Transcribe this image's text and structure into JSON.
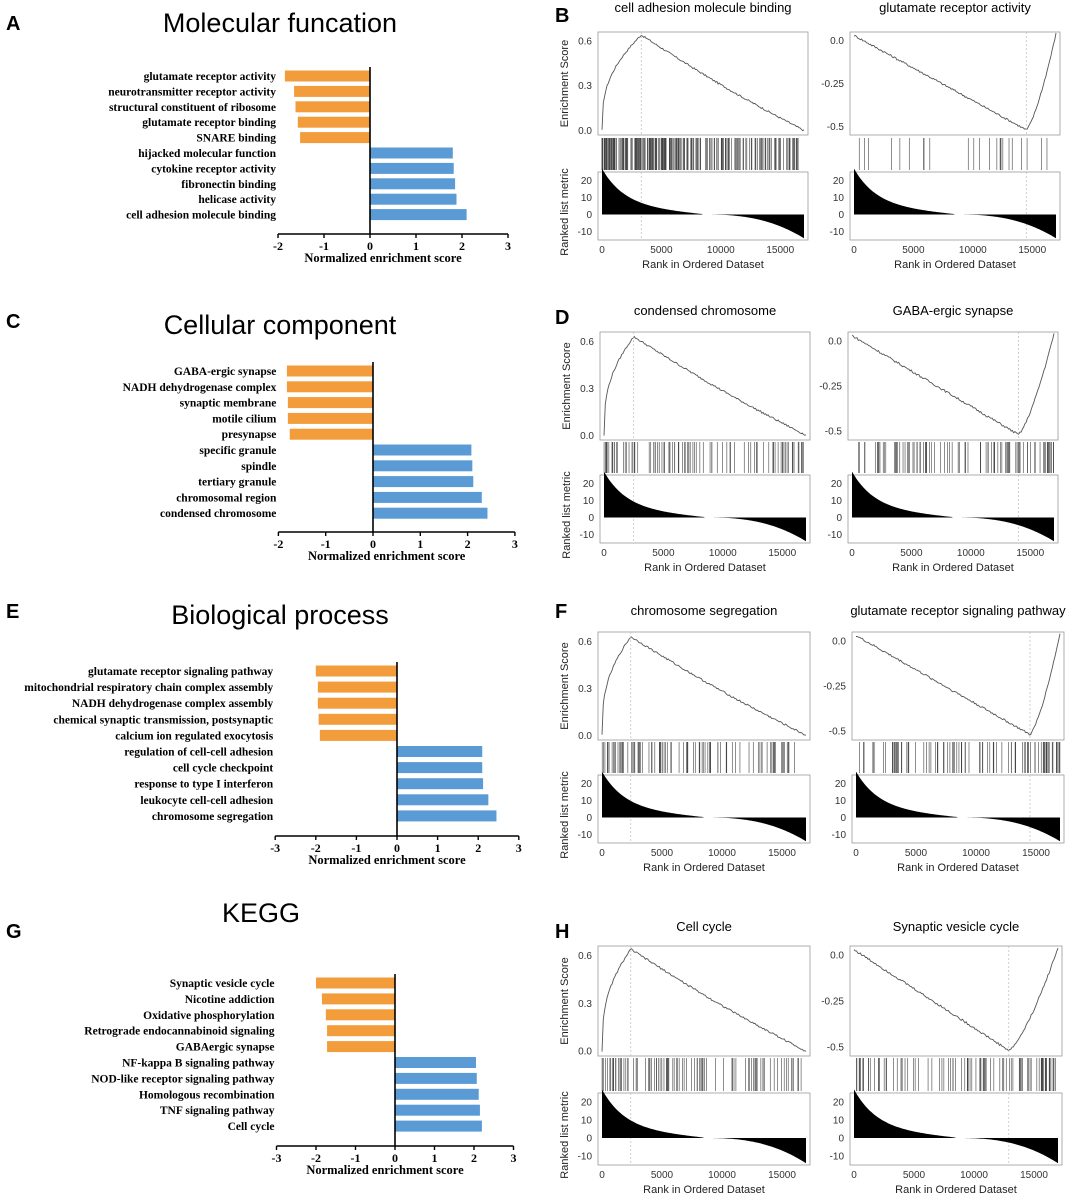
{
  "colors": {
    "positive": "#5b9bd5",
    "negative": "#f39c3c",
    "axis": "#000000",
    "curve": "#555555",
    "hit": "#444444"
  },
  "panels": [
    {
      "letter": "A",
      "title": "Molecular funcation"
    },
    {
      "letter": "B"
    },
    {
      "letter": "C",
      "title": "Cellular component"
    },
    {
      "letter": "D"
    },
    {
      "letter": "E",
      "title": "Biological process"
    },
    {
      "letter": "F"
    },
    {
      "letter": "G",
      "title": "KEGG"
    },
    {
      "letter": "H"
    }
  ],
  "chart_data": [
    {
      "type": "bar",
      "panel": "A",
      "orientation": "horizontal",
      "title": "Molecular funcation",
      "xlabel": "Normalized enrichment score",
      "xlim": [
        -2,
        3
      ],
      "xticks": [
        -2,
        -1,
        0,
        1,
        2,
        3
      ],
      "categories": [
        "glutamate receptor activity",
        "neurotransmitter receptor activity",
        "structural constituent of ribosome",
        "glutamate receptor binding",
        "SNARE binding",
        "hijacked molecular function",
        "cytokine receptor activity",
        "fibronectin binding",
        "helicase activity",
        "cell adhesion molecule binding"
      ],
      "values": [
        -1.85,
        -1.65,
        -1.62,
        -1.57,
        -1.52,
        1.8,
        1.82,
        1.85,
        1.88,
        2.1
      ]
    },
    {
      "type": "bar",
      "panel": "C",
      "orientation": "horizontal",
      "title": "Cellular component",
      "xlabel": "Normalized enrichment score",
      "xlim": [
        -2,
        3
      ],
      "xticks": [
        -2,
        -1,
        0,
        1,
        2,
        3
      ],
      "categories": [
        "GABA-ergic synapse",
        "NADH dehydrogenase complex",
        "synaptic membrane",
        "motile cilium",
        "presynapse",
        "specific granule",
        "spindle",
        "tertiary granule",
        "chromosomal region",
        "condensed chromosome"
      ],
      "values": [
        -1.82,
        -1.82,
        -1.8,
        -1.8,
        -1.76,
        2.08,
        2.1,
        2.12,
        2.3,
        2.42
      ]
    },
    {
      "type": "bar",
      "panel": "E",
      "orientation": "horizontal",
      "title": "Biological process",
      "xlabel": "Normalized enrichment score",
      "xlim": [
        -3,
        3
      ],
      "xticks": [
        -3,
        -2,
        -1,
        0,
        1,
        2,
        3
      ],
      "categories": [
        "glutamate receptor signaling pathway",
        "mitochondrial respiratory chain complex assembly",
        "NADH dehydrogenase complex assembly",
        "chemical synaptic transmission, postsynaptic",
        "calcium ion regulated exocytosis",
        "regulation of cell-cell adhesion",
        "cell cycle checkpoint",
        "response to type I interferon",
        "leukocyte cell-cell adhesion",
        "chromosome segregation"
      ],
      "values": [
        -2.0,
        -1.95,
        -1.95,
        -1.93,
        -1.9,
        2.1,
        2.1,
        2.12,
        2.25,
        2.45
      ]
    },
    {
      "type": "bar",
      "panel": "G",
      "orientation": "horizontal",
      "title": "KEGG",
      "xlabel": "Normalized enrichment score",
      "xlim": [
        -3,
        3
      ],
      "xticks": [
        -3,
        -2,
        -1,
        0,
        1,
        2,
        3
      ],
      "categories": [
        "Synaptic vesicle cycle",
        "Nicotine addiction",
        "Oxidative phosphorylation",
        "Retrograde endocannabinoid signaling",
        "GABAergic synapse",
        "NF-kappa B signaling pathway",
        "NOD-like receptor signaling pathway",
        "Homologous recombination",
        "TNF signaling pathway",
        "Cell cycle"
      ],
      "values": [
        -2.0,
        -1.85,
        -1.75,
        -1.72,
        -1.72,
        2.05,
        2.07,
        2.12,
        2.15,
        2.2
      ]
    },
    {
      "type": "line",
      "panel": "B",
      "subtitle": "cell adhesion molecule binding",
      "direction": "positive",
      "ylabel": "Enrichment Score",
      "rank_ylabel": "Ranked list metric",
      "xlabel": "Rank in Ordered Dataset",
      "es_ticks": [
        "0.6",
        "0.3",
        "0.0"
      ],
      "es_range": [
        -0.03,
        0.66
      ],
      "peak_es": 0.64,
      "peak_rank": 3300,
      "rank_ticks": [
        "20",
        "10",
        "0",
        "-10"
      ],
      "rank_range": [
        -15,
        25
      ],
      "x_ticks": [
        "0",
        "5000",
        "10000",
        "15000"
      ],
      "n": 17000,
      "hit_density": "dense"
    },
    {
      "type": "line",
      "panel": "B",
      "subtitle": "glutamate receptor activity",
      "direction": "negative",
      "ylabel": "",
      "rank_ylabel": "",
      "xlabel": "Rank in Ordered Dataset",
      "es_ticks": [
        "0.0",
        "-0.25",
        "-0.5"
      ],
      "es_range": [
        -0.55,
        0.05
      ],
      "peak_es": -0.52,
      "peak_rank": 14500,
      "rank_ticks": [
        "20",
        "10",
        "0",
        "-10"
      ],
      "rank_range": [
        -15,
        25
      ],
      "x_ticks": [
        "0",
        "5000",
        "10000",
        "15000"
      ],
      "n": 17000,
      "hit_density": "sparse"
    },
    {
      "type": "line",
      "panel": "D",
      "subtitle": "condensed chromosome",
      "direction": "positive",
      "ylabel": "Enrichment Score",
      "rank_ylabel": "Ranked list metric",
      "xlabel": "Rank in Ordered Dataset",
      "es_ticks": [
        "0.6",
        "0.3",
        "0.0"
      ],
      "es_range": [
        -0.03,
        0.66
      ],
      "peak_es": 0.63,
      "peak_rank": 2500,
      "rank_ticks": [
        "20",
        "10",
        "0",
        "-10"
      ],
      "rank_range": [
        -15,
        25
      ],
      "x_ticks": [
        "0",
        "5000",
        "10000",
        "15000"
      ],
      "n": 17000,
      "hit_density": "medium"
    },
    {
      "type": "line",
      "panel": "D",
      "subtitle": "GABA-ergic synapse",
      "direction": "negative",
      "ylabel": "",
      "rank_ylabel": "",
      "xlabel": "Rank in Ordered Dataset",
      "es_ticks": [
        "0.0",
        "-0.25",
        "-0.5"
      ],
      "es_range": [
        -0.55,
        0.05
      ],
      "peak_es": -0.52,
      "peak_rank": 14000,
      "rank_ticks": [
        "20",
        "10",
        "0",
        "-10"
      ],
      "rank_range": [
        -15,
        25
      ],
      "x_ticks": [
        "0",
        "5000",
        "10000",
        "15000"
      ],
      "n": 17000,
      "hit_density": "medium"
    },
    {
      "type": "line",
      "panel": "F",
      "subtitle": "chromosome segregation",
      "direction": "positive",
      "ylabel": "Enrichment Score",
      "rank_ylabel": "Ranked list metric",
      "xlabel": "Rank in Ordered Dataset",
      "es_ticks": [
        "0.6",
        "0.3",
        "0.0"
      ],
      "es_range": [
        -0.03,
        0.66
      ],
      "peak_es": 0.63,
      "peak_rank": 2400,
      "rank_ticks": [
        "20",
        "10",
        "0",
        "-10"
      ],
      "rank_range": [
        -15,
        25
      ],
      "x_ticks": [
        "0",
        "5000",
        "10000",
        "15000"
      ],
      "n": 17000,
      "hit_density": "medium"
    },
    {
      "type": "line",
      "panel": "F",
      "subtitle": "glutamate receptor signaling pathway",
      "direction": "negative",
      "ylabel": "",
      "rank_ylabel": "",
      "xlabel": "Rank in Ordered Dataset",
      "es_ticks": [
        "0.0",
        "-0.25",
        "-0.5"
      ],
      "es_range": [
        -0.55,
        0.05
      ],
      "peak_es": -0.52,
      "peak_rank": 14500,
      "rank_ticks": [
        "20",
        "10",
        "0",
        "-10"
      ],
      "rank_range": [
        -15,
        25
      ],
      "x_ticks": [
        "0",
        "5000",
        "10000",
        "15000"
      ],
      "n": 17000,
      "hit_density": "medium"
    },
    {
      "type": "line",
      "panel": "H",
      "subtitle": "Cell cycle",
      "direction": "positive",
      "ylabel": "Enrichment Score",
      "rank_ylabel": "Ranked list metric",
      "xlabel": "Rank in Ordered Dataset",
      "es_ticks": [
        "0.6",
        "0.3",
        "0.0"
      ],
      "es_range": [
        -0.03,
        0.66
      ],
      "peak_es": 0.64,
      "peak_rank": 2400,
      "rank_ticks": [
        "20",
        "10",
        "0",
        "-10"
      ],
      "rank_range": [
        -15,
        25
      ],
      "x_ticks": [
        "0",
        "5000",
        "10000",
        "15000"
      ],
      "n": 17000,
      "hit_density": "medium"
    },
    {
      "type": "line",
      "panel": "H",
      "subtitle": "Synaptic vesicle cycle",
      "direction": "negative",
      "ylabel": "",
      "rank_ylabel": "",
      "xlabel": "Rank in Ordered Dataset",
      "es_ticks": [
        "0.0",
        "-0.25",
        "-0.5"
      ],
      "es_range": [
        -0.55,
        0.05
      ],
      "peak_es": -0.52,
      "peak_rank": 12900,
      "rank_ticks": [
        "20",
        "10",
        "0",
        "-10"
      ],
      "rank_range": [
        -15,
        25
      ],
      "x_ticks": [
        "0",
        "5000",
        "10000",
        "15000"
      ],
      "n": 17000,
      "hit_density": "medium"
    }
  ]
}
